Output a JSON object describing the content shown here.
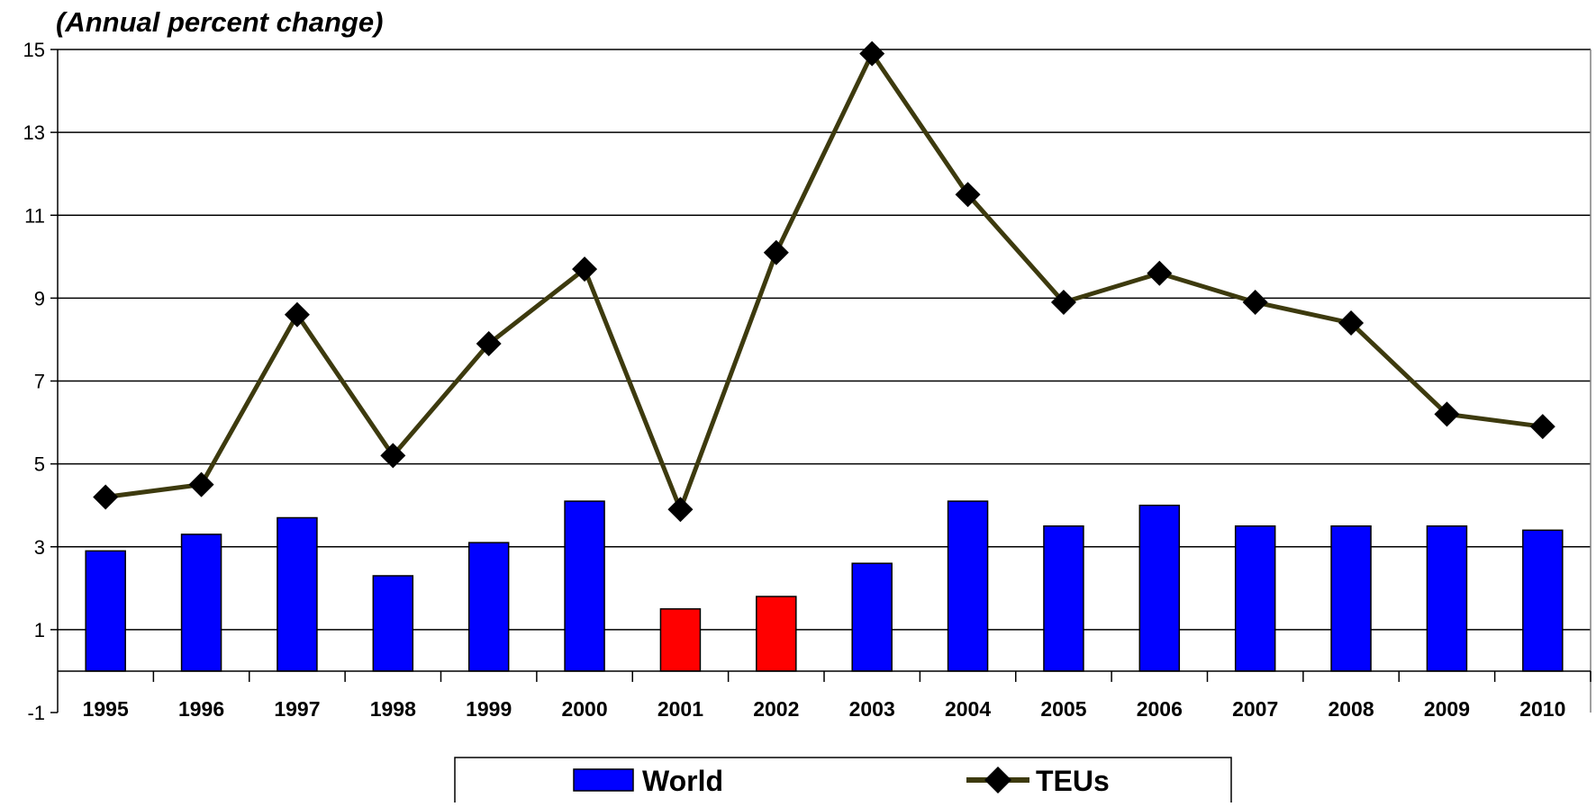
{
  "chart_data": {
    "type": "bar",
    "subtitle": "(Annual percent change)",
    "categories": [
      "1995",
      "1996",
      "1997",
      "1998",
      "1999",
      "2000",
      "2001",
      "2002",
      "2003",
      "2004",
      "2005",
      "2006",
      "2007",
      "2008",
      "2009",
      "2010"
    ],
    "ylim": [
      -1,
      15
    ],
    "yticks": [
      -1,
      1,
      3,
      5,
      7,
      9,
      11,
      13,
      15
    ],
    "grid": true,
    "legend_position": "bottom-center",
    "series": [
      {
        "name": "World",
        "kind": "bar",
        "color": "#0000ff",
        "highlight_color": "#ff0000",
        "highlight_categories": [
          "2001",
          "2002"
        ],
        "values": [
          2.9,
          3.3,
          3.7,
          2.3,
          3.1,
          4.1,
          1.5,
          1.8,
          2.6,
          4.1,
          3.5,
          4.0,
          3.5,
          3.5,
          3.5,
          3.4
        ]
      },
      {
        "name": "TEUs",
        "kind": "line",
        "color": "#3d3a0e",
        "marker": "diamond",
        "values": [
          4.2,
          4.5,
          8.6,
          5.2,
          7.9,
          9.7,
          3.9,
          10.1,
          14.9,
          11.5,
          8.9,
          9.6,
          8.9,
          8.4,
          6.2,
          5.9
        ]
      }
    ]
  }
}
